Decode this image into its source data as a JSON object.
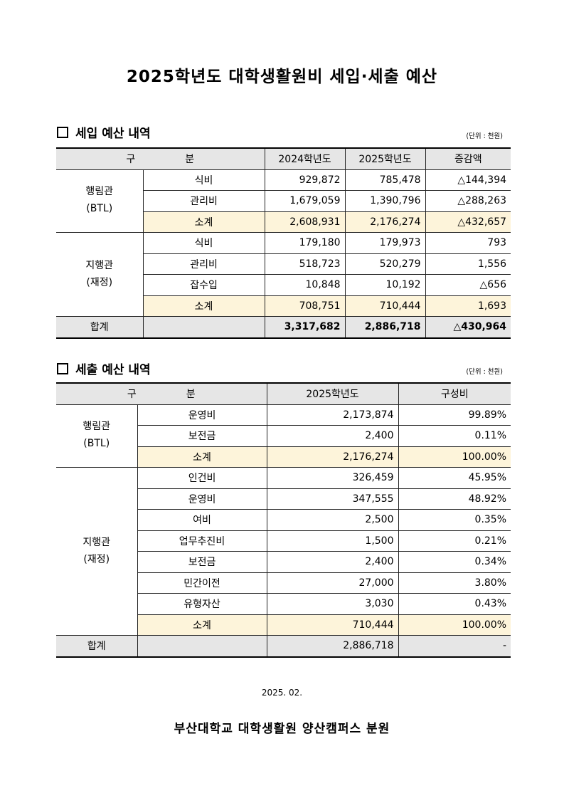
{
  "title": "2025학년도 대학생활원비 세입·세출 예산",
  "unit": "(단위 : 천원)",
  "income": {
    "heading": "세입 예산 내역",
    "headers": [
      "구　　　　　분",
      "2024학년도",
      "2025학년도",
      "증감액"
    ],
    "groups": [
      {
        "name": [
          "행림관",
          "(BTL)"
        ],
        "rows": [
          {
            "item": "식비",
            "values": [
              "929,872",
              "785,478",
              "△144,394"
            ]
          },
          {
            "item": "관리비",
            "values": [
              "1,679,059",
              "1,390,796",
              "△288,263"
            ]
          },
          {
            "item": "소계",
            "values": [
              "2,608,931",
              "2,176,274",
              "△432,657"
            ],
            "subtotal": true
          }
        ]
      },
      {
        "name": [
          "지행관",
          "(재정)"
        ],
        "rows": [
          {
            "item": "식비",
            "values": [
              "179,180",
              "179,973",
              "793"
            ]
          },
          {
            "item": "관리비",
            "values": [
              "518,723",
              "520,279",
              "1,556"
            ]
          },
          {
            "item": "잡수입",
            "values": [
              "10,848",
              "10,192",
              "△656"
            ]
          },
          {
            "item": "소계",
            "values": [
              "708,751",
              "710,444",
              "1,693"
            ],
            "subtotal": true
          }
        ]
      }
    ],
    "total": {
      "label": "합계",
      "values": [
        "3,317,682",
        "2,886,718",
        "△430,964"
      ]
    }
  },
  "expense": {
    "heading": "세출 예산 내역",
    "headers": [
      "구　　　　　분",
      "2025학년도",
      "구성비"
    ],
    "groups": [
      {
        "name": [
          "행림관",
          "(BTL)"
        ],
        "rows": [
          {
            "item": "운영비",
            "values": [
              "2,173,874",
              "99.89%"
            ]
          },
          {
            "item": "보전금",
            "values": [
              "2,400",
              "0.11%"
            ]
          },
          {
            "item": "소계",
            "values": [
              "2,176,274",
              "100.00%"
            ],
            "subtotal": true
          }
        ]
      },
      {
        "name": [
          "지행관",
          "(재정)"
        ],
        "rows": [
          {
            "item": "인건비",
            "values": [
              "326,459",
              "45.95%"
            ]
          },
          {
            "item": "운영비",
            "values": [
              "347,555",
              "48.92%"
            ]
          },
          {
            "item": "여비",
            "values": [
              "2,500",
              "0.35%"
            ]
          },
          {
            "item": "업무추진비",
            "values": [
              "1,500",
              "0.21%"
            ]
          },
          {
            "item": "보전금",
            "values": [
              "2,400",
              "0.34%"
            ]
          },
          {
            "item": "민간이전",
            "values": [
              "27,000",
              "3.80%"
            ]
          },
          {
            "item": "유형자산",
            "values": [
              "3,030",
              "0.43%"
            ]
          },
          {
            "item": "소계",
            "values": [
              "710,444",
              "100.00%"
            ],
            "subtotal": true
          }
        ]
      }
    ],
    "total": {
      "label": "합계",
      "values": [
        "2,886,718",
        "-"
      ]
    }
  },
  "date": "2025. 02.",
  "footer": "부산대학교 대학생활원 양산캠퍼스 분원"
}
